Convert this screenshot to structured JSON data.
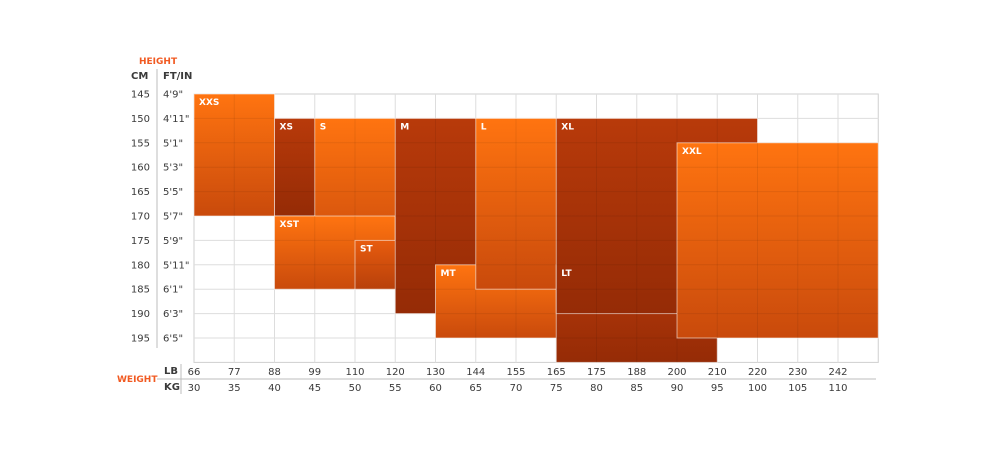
{
  "chart_data": {
    "type": "heatmap",
    "title": "",
    "height_label": "HEIGHT",
    "weight_label": "WEIGHT",
    "cm_header": "CM",
    "ftin_header": "FT/IN",
    "lb_header": "LB",
    "kg_header": "KG",
    "rows_cm": [
      "145",
      "150",
      "155",
      "160",
      "165",
      "170",
      "175",
      "180",
      "185",
      "190",
      "195"
    ],
    "rows_ftin": [
      "4'9\"",
      "4'11\"",
      "5'1\"",
      "5'3\"",
      "5'5\"",
      "5'7\"",
      "5'9\"",
      "5'11\"",
      "6'1\"",
      "6'3\"",
      "6'5\""
    ],
    "cols_lb": [
      "66",
      "77",
      "88",
      "99",
      "110",
      "120",
      "130",
      "144",
      "155",
      "165",
      "175",
      "188",
      "200",
      "210",
      "220",
      "230",
      "242"
    ],
    "cols_kg": [
      "30",
      "35",
      "40",
      "45",
      "50",
      "55",
      "60",
      "65",
      "70",
      "75",
      "80",
      "85",
      "90",
      "95",
      "100",
      "105",
      "110"
    ],
    "zones": [
      {
        "label": "XXS",
        "kg_range": [
          30,
          35
        ],
        "height_cm": [
          145,
          165
        ],
        "tone": "orange"
      },
      {
        "label": "XS",
        "kg_range": [
          40,
          45
        ],
        "height_cm": [
          150,
          165
        ],
        "tone": "dark"
      },
      {
        "label": "S",
        "kg_range": [
          45,
          55
        ],
        "height_cm": [
          150,
          175
        ],
        "tone": "orange"
      },
      {
        "label": "XST",
        "kg_range": [
          40,
          50
        ],
        "height_cm": [
          170,
          180
        ],
        "tone": "orange"
      },
      {
        "label": "ST",
        "kg_range": [
          50,
          55
        ],
        "height_cm": [
          175,
          180
        ],
        "tone": "medium"
      },
      {
        "label": "M",
        "kg_range": [
          55,
          65
        ],
        "height_cm": [
          150,
          185
        ],
        "tone": "dark"
      },
      {
        "label": "MT",
        "kg_range": [
          60,
          75
        ],
        "height_cm": [
          180,
          190
        ],
        "tone": "orange"
      },
      {
        "label": "L",
        "kg_range": [
          65,
          80
        ],
        "height_cm": [
          150,
          180
        ],
        "tone": "orange"
      },
      {
        "label": "LT",
        "kg_range": [
          75,
          90
        ],
        "height_cm": [
          180,
          195
        ],
        "tone": "dark"
      },
      {
        "label": "XL",
        "kg_range": [
          75,
          95
        ],
        "height_cm": [
          150,
          185
        ],
        "tone": "dark"
      },
      {
        "label": "XXL",
        "kg_range": [
          90,
          110
        ],
        "height_cm": [
          155,
          190
        ],
        "tone": "orange"
      }
    ],
    "colors": {
      "accent": "#f15a22",
      "orange_light": "#ff7410",
      "orange_dark": "#c94a0c",
      "medium_light": "#e85c0e",
      "medium_dark": "#b8400b",
      "dark_light": "#b83a0a",
      "dark_dark": "#952b06",
      "grid": "#dddddd",
      "text": "#3a3a3a"
    }
  }
}
